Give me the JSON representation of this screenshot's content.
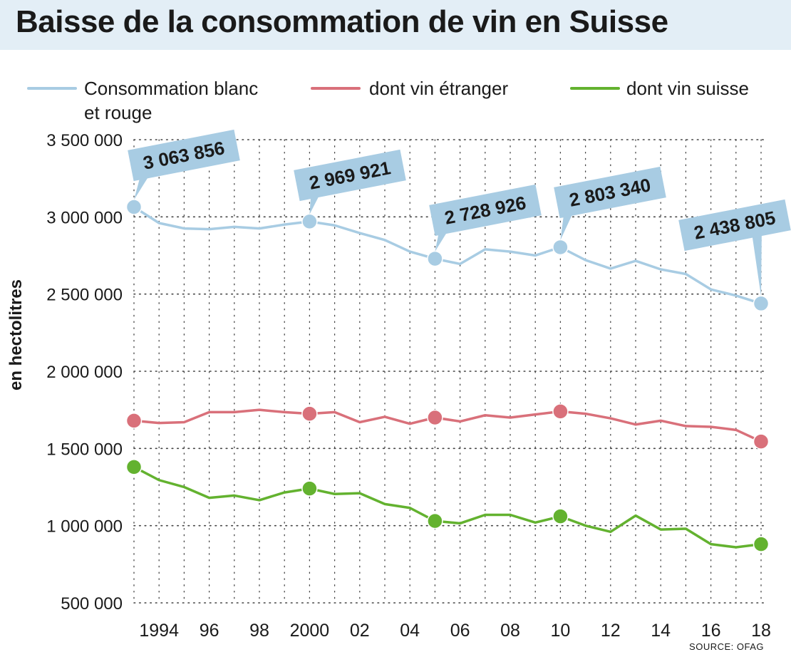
{
  "chart_data": {
    "type": "line",
    "title": "Baisse de la consommation de vin en Suisse",
    "ylabel": "en hectolitres",
    "xlabel": "",
    "source": "SOURCE: OFAG",
    "ylim": [
      500000,
      3500000
    ],
    "yticks": [
      {
        "value": 3500000,
        "label": "3 500 000"
      },
      {
        "value": 3000000,
        "label": "3 000 000"
      },
      {
        "value": 2500000,
        "label": "2 500 000"
      },
      {
        "value": 2000000,
        "label": "2 000 000"
      },
      {
        "value": 1500000,
        "label": "1 500 000"
      },
      {
        "value": 1000000,
        "label": "1 000 000"
      },
      {
        "value": 500000,
        "label": "500 000"
      }
    ],
    "x": [
      1993,
      1994,
      1995,
      1996,
      1997,
      1998,
      1999,
      2000,
      2001,
      2002,
      2003,
      2004,
      2005,
      2006,
      2007,
      2008,
      2009,
      2010,
      2011,
      2012,
      2013,
      2014,
      2015,
      2016,
      2017,
      2018
    ],
    "xticks": [
      {
        "value": 1994,
        "label": "1994"
      },
      {
        "value": 1996,
        "label": "96"
      },
      {
        "value": 1998,
        "label": "98"
      },
      {
        "value": 2000,
        "label": "2000"
      },
      {
        "value": 2002,
        "label": "02"
      },
      {
        "value": 2004,
        "label": "04"
      },
      {
        "value": 2006,
        "label": "06"
      },
      {
        "value": 2008,
        "label": "08"
      },
      {
        "value": 2010,
        "label": "10"
      },
      {
        "value": 2012,
        "label": "12"
      },
      {
        "value": 2014,
        "label": "14"
      },
      {
        "value": 2016,
        "label": "16"
      },
      {
        "value": 2018,
        "label": "18"
      }
    ],
    "series": [
      {
        "name": "Consommation blanc et rouge",
        "legend_lines": [
          "Consommation blanc",
          "et rouge"
        ],
        "color": "#a8cce3",
        "values": [
          3063856,
          2960000,
          2925000,
          2920000,
          2935000,
          2925000,
          2950000,
          2969921,
          2945000,
          2895000,
          2850000,
          2775000,
          2728926,
          2695000,
          2790000,
          2775000,
          2750000,
          2803340,
          2720000,
          2665000,
          2715000,
          2660000,
          2630000,
          2530000,
          2490000,
          2438805
        ],
        "highlight_years": [
          1993,
          2000,
          2005,
          2010,
          2018
        ],
        "callouts": [
          {
            "year": 1993,
            "label": "3 063 856"
          },
          {
            "year": 2000,
            "label": "2 969 921"
          },
          {
            "year": 2005,
            "label": "2 728 926"
          },
          {
            "year": 2010,
            "label": "2 803 340"
          },
          {
            "year": 2018,
            "label": "2 438 805"
          }
        ]
      },
      {
        "name": "dont vin étranger",
        "legend_lines": [
          "dont vin étranger"
        ],
        "color": "#d9707a",
        "values": [
          1680000,
          1665000,
          1670000,
          1735000,
          1735000,
          1750000,
          1735000,
          1725000,
          1735000,
          1670000,
          1705000,
          1660000,
          1700000,
          1675000,
          1715000,
          1700000,
          1720000,
          1740000,
          1725000,
          1695000,
          1655000,
          1680000,
          1645000,
          1640000,
          1620000,
          1545000
        ],
        "highlight_years": [
          1993,
          2000,
          2005,
          2010,
          2018
        ]
      },
      {
        "name": "dont vin suisse",
        "legend_lines": [
          "dont vin suisse"
        ],
        "color": "#63b22f",
        "values": [
          1380000,
          1295000,
          1250000,
          1180000,
          1195000,
          1165000,
          1215000,
          1240000,
          1205000,
          1210000,
          1140000,
          1115000,
          1030000,
          1015000,
          1070000,
          1070000,
          1020000,
          1060000,
          1000000,
          960000,
          1065000,
          975000,
          980000,
          880000,
          860000,
          880000
        ],
        "highlight_years": [
          1993,
          2000,
          2005,
          2010,
          2018
        ]
      }
    ]
  }
}
